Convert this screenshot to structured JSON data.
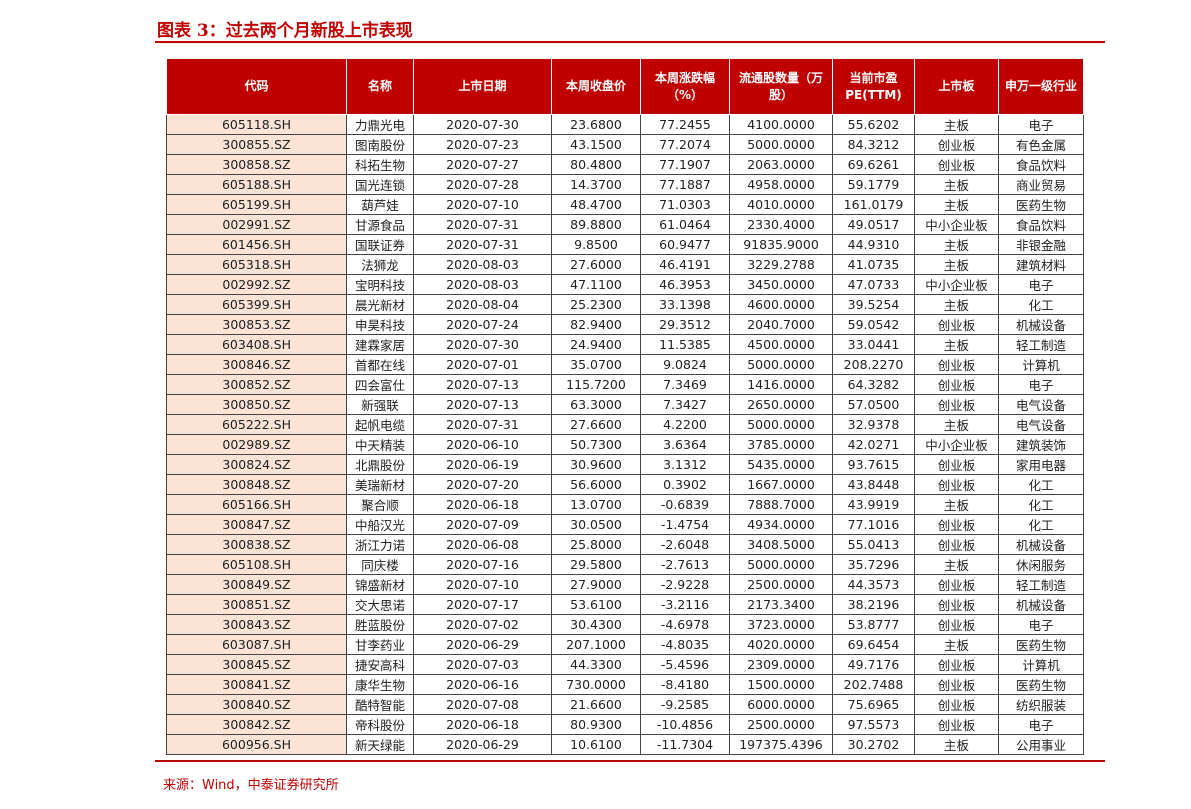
{
  "title": "图表 3：过去两个月新股上市表现",
  "table": {
    "header": [
      "代码",
      "名称",
      "上市日期",
      "本周收盘价",
      "本周涨跌幅（%）",
      "流通股数量（万股）",
      "当前市盈PE(TTM)",
      "上市板",
      "申万一级行业"
    ],
    "rows": [
      [
        "605118.SH",
        "力鼎光电",
        "2020-07-30",
        "23.6800",
        "77.2455",
        "4100.0000",
        "55.6202",
        "主板",
        "电子"
      ],
      [
        "300855.SZ",
        "图南股份",
        "2020-07-23",
        "43.1500",
        "77.2074",
        "5000.0000",
        "84.3212",
        "创业板",
        "有色金属"
      ],
      [
        "300858.SZ",
        "科拓生物",
        "2020-07-27",
        "80.4800",
        "77.1907",
        "2063.0000",
        "69.6261",
        "创业板",
        "食品饮料"
      ],
      [
        "605188.SH",
        "国光连锁",
        "2020-07-28",
        "14.3700",
        "77.1887",
        "4958.0000",
        "59.1779",
        "主板",
        "商业贸易"
      ],
      [
        "605199.SH",
        "葫芦娃",
        "2020-07-10",
        "48.4700",
        "71.0303",
        "4010.0000",
        "161.0179",
        "主板",
        "医药生物"
      ],
      [
        "002991.SZ",
        "甘源食品",
        "2020-07-31",
        "89.8800",
        "61.0464",
        "2330.4000",
        "49.0517",
        "中小企业板",
        "食品饮料"
      ],
      [
        "601456.SH",
        "国联证券",
        "2020-07-31",
        "9.8500",
        "60.9477",
        "91835.9000",
        "44.9310",
        "主板",
        "非银金融"
      ],
      [
        "605318.SH",
        "法狮龙",
        "2020-08-03",
        "27.6000",
        "46.4191",
        "3229.2788",
        "41.0735",
        "主板",
        "建筑材料"
      ],
      [
        "002992.SZ",
        "宝明科技",
        "2020-08-03",
        "47.1100",
        "46.3953",
        "3450.0000",
        "47.0733",
        "中小企业板",
        "电子"
      ],
      [
        "605399.SH",
        "晨光新材",
        "2020-08-04",
        "25.2300",
        "33.1398",
        "4600.0000",
        "39.5254",
        "主板",
        "化工"
      ],
      [
        "300853.SZ",
        "申昊科技",
        "2020-07-24",
        "82.9400",
        "29.3512",
        "2040.7000",
        "59.0542",
        "创业板",
        "机械设备"
      ],
      [
        "603408.SH",
        "建霖家居",
        "2020-07-30",
        "24.9400",
        "11.5385",
        "4500.0000",
        "33.0441",
        "主板",
        "轻工制造"
      ],
      [
        "300846.SZ",
        "首都在线",
        "2020-07-01",
        "35.0700",
        "9.0824",
        "5000.0000",
        "208.2270",
        "创业板",
        "计算机"
      ],
      [
        "300852.SZ",
        "四会富仕",
        "2020-07-13",
        "115.7200",
        "7.3469",
        "1416.0000",
        "64.3282",
        "创业板",
        "电子"
      ],
      [
        "300850.SZ",
        "新强联",
        "2020-07-13",
        "63.3000",
        "7.3427",
        "2650.0000",
        "57.0500",
        "创业板",
        "电气设备"
      ],
      [
        "605222.SH",
        "起帆电缆",
        "2020-07-31",
        "27.6600",
        "4.2200",
        "5000.0000",
        "32.9378",
        "主板",
        "电气设备"
      ],
      [
        "002989.SZ",
        "中天精装",
        "2020-06-10",
        "50.7300",
        "3.6364",
        "3785.0000",
        "42.0271",
        "中小企业板",
        "建筑装饰"
      ],
      [
        "300824.SZ",
        "北鼎股份",
        "2020-06-19",
        "30.9600",
        "3.1312",
        "5435.0000",
        "93.7615",
        "创业板",
        "家用电器"
      ],
      [
        "300848.SZ",
        "美瑞新材",
        "2020-07-20",
        "56.6000",
        "0.3902",
        "1667.0000",
        "43.8448",
        "创业板",
        "化工"
      ],
      [
        "605166.SH",
        "聚合顺",
        "2020-06-18",
        "13.0700",
        "-0.6839",
        "7888.7000",
        "43.9919",
        "主板",
        "化工"
      ],
      [
        "300847.SZ",
        "中船汉光",
        "2020-07-09",
        "30.0500",
        "-1.4754",
        "4934.0000",
        "77.1016",
        "创业板",
        "化工"
      ],
      [
        "300838.SZ",
        "浙江力诺",
        "2020-06-08",
        "25.8000",
        "-2.6048",
        "3408.5000",
        "55.0413",
        "创业板",
        "机械设备"
      ],
      [
        "605108.SH",
        "同庆楼",
        "2020-07-16",
        "29.5800",
        "-2.7613",
        "5000.0000",
        "35.7296",
        "主板",
        "休闲服务"
      ],
      [
        "300849.SZ",
        "锦盛新材",
        "2020-07-10",
        "27.9000",
        "-2.9228",
        "2500.0000",
        "44.3573",
        "创业板",
        "轻工制造"
      ],
      [
        "300851.SZ",
        "交大思诺",
        "2020-07-17",
        "53.6100",
        "-3.2116",
        "2173.3400",
        "38.2196",
        "创业板",
        "机械设备"
      ],
      [
        "300843.SZ",
        "胜蓝股份",
        "2020-07-02",
        "30.4300",
        "-4.6978",
        "3723.0000",
        "53.8777",
        "创业板",
        "电子"
      ],
      [
        "603087.SH",
        "甘李药业",
        "2020-06-29",
        "207.1000",
        "-4.8035",
        "4020.0000",
        "69.6454",
        "主板",
        "医药生物"
      ],
      [
        "300845.SZ",
        "捷安高科",
        "2020-07-03",
        "44.3300",
        "-5.4596",
        "2309.0000",
        "49.7176",
        "创业板",
        "计算机"
      ],
      [
        "300841.SZ",
        "康华生物",
        "2020-06-16",
        "730.0000",
        "-8.4180",
        "1500.0000",
        "202.7488",
        "创业板",
        "医药生物"
      ],
      [
        "300840.SZ",
        "酷特智能",
        "2020-07-08",
        "21.6600",
        "-9.2585",
        "6000.0000",
        "75.6965",
        "创业板",
        "纺织服装"
      ],
      [
        "300842.SZ",
        "帝科股份",
        "2020-06-18",
        "80.9300",
        "-10.4856",
        "2500.0000",
        "97.5573",
        "创业板",
        "电子"
      ],
      [
        "600956.SH",
        "新天绿能",
        "2020-06-29",
        "10.6100",
        "-11.7304",
        "197375.4396",
        "30.2702",
        "主板",
        "公用事业"
      ]
    ]
  },
  "source": "来源：Wind，中泰证券研究所"
}
